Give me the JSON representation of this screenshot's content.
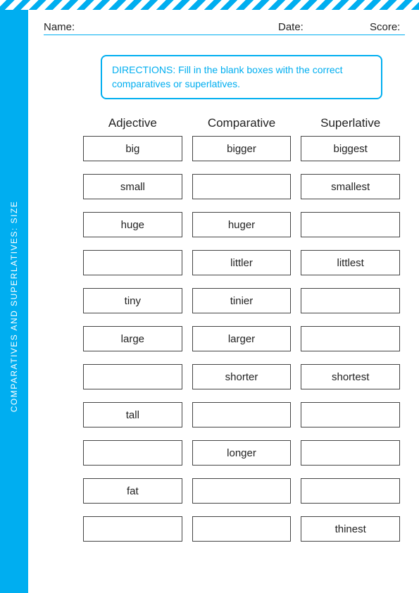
{
  "colors": {
    "accent": "#00aef0",
    "text": "#222222",
    "bg": "#ffffff"
  },
  "sidebar_label": "COMPARATIVES AND SUPERLATIVES: SIZE",
  "header": {
    "name_label": "Name:",
    "date_label": "Date:",
    "score_label": "Score:"
  },
  "directions": "DIRECTIONS: Fill in the blank boxes with the correct comparatives or superlatives.",
  "columns": [
    "Adjective",
    "Comparative",
    "Superlative"
  ],
  "rows": [
    {
      "adj": "big",
      "comp": "bigger",
      "sup": "biggest"
    },
    {
      "adj": "small",
      "comp": "",
      "sup": "smallest"
    },
    {
      "adj": "huge",
      "comp": "huger",
      "sup": ""
    },
    {
      "adj": "",
      "comp": "littler",
      "sup": "littlest"
    },
    {
      "adj": "tiny",
      "comp": "tinier",
      "sup": ""
    },
    {
      "adj": "large",
      "comp": "larger",
      "sup": ""
    },
    {
      "adj": "",
      "comp": "shorter",
      "sup": "shortest"
    },
    {
      "adj": "tall",
      "comp": "",
      "sup": ""
    },
    {
      "adj": "",
      "comp": "longer",
      "sup": ""
    },
    {
      "adj": "fat",
      "comp": "",
      "sup": ""
    },
    {
      "adj": "",
      "comp": "",
      "sup": "thinest"
    }
  ]
}
